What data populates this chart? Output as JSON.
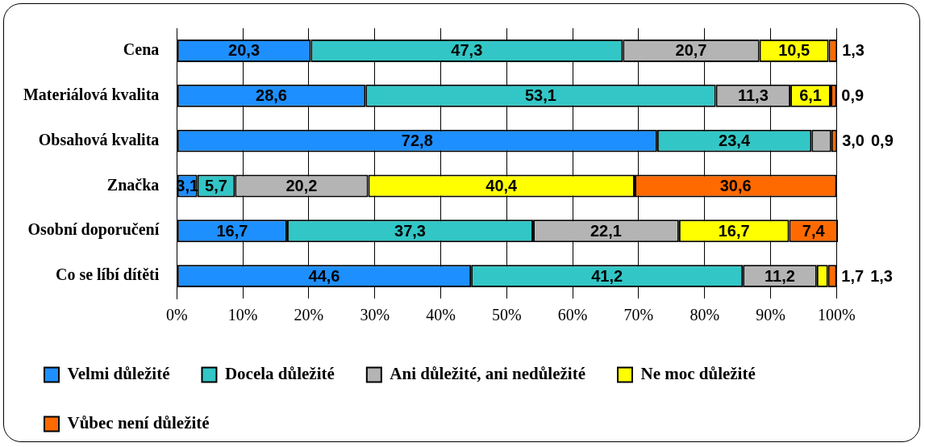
{
  "chart_data": {
    "type": "bar",
    "orientation": "horizontal",
    "stacked": true,
    "categories": [
      "Cena",
      "Materiálová kvalita",
      "Obsahová kvalita",
      "Značka",
      "Osobní doporučení",
      "Co se líbí dítěti"
    ],
    "series": [
      {
        "name": "Velmi důležité",
        "color": "#1e8fff",
        "values": [
          20.3,
          28.6,
          72.8,
          3.1,
          16.7,
          44.6
        ],
        "value_labels": [
          "20,3",
          "28,6",
          "72,8",
          "3,1",
          "16,7",
          "44,6"
        ]
      },
      {
        "name": "Docela důležité",
        "color": "#33c6c6",
        "values": [
          47.3,
          53.1,
          23.4,
          5.7,
          37.3,
          41.2
        ],
        "value_labels": [
          "47,3",
          "53,1",
          "23,4",
          "5,7",
          "37,3",
          "41,2"
        ]
      },
      {
        "name": "Ani důležité, ani nedůležité",
        "color": "#b4b4b4",
        "values": [
          20.7,
          11.3,
          3.0,
          20.2,
          22.1,
          11.2
        ],
        "value_labels": [
          "20,7",
          "11,3",
          "3,0",
          "20,2",
          "22,1",
          "11,2"
        ]
      },
      {
        "name": "Ne moc důležité",
        "color": "#ffff00",
        "values": [
          10.5,
          6.1,
          null,
          40.4,
          16.7,
          1.7
        ],
        "value_labels": [
          "10,5",
          "6,1",
          null,
          "40,4",
          "16,7",
          "1,7"
        ]
      },
      {
        "name": "Vůbec není důležité",
        "color": "#ff6a00",
        "values": [
          1.3,
          0.9,
          0.9,
          30.6,
          7.4,
          1.3
        ],
        "value_labels": [
          "1,3",
          "0,9",
          "0,9",
          "30,6",
          "7,4",
          "1,3"
        ]
      }
    ],
    "xlim": [
      0,
      100.2
    ],
    "xticks": [
      {
        "value": 0,
        "label": "0%"
      },
      {
        "value": 10,
        "label": "10%"
      },
      {
        "value": 20,
        "label": "20%"
      },
      {
        "value": 30,
        "label": "30%"
      },
      {
        "value": 40,
        "label": "40%"
      },
      {
        "value": 50,
        "label": "50%"
      },
      {
        "value": 60,
        "label": "60%"
      },
      {
        "value": 70,
        "label": "70%"
      },
      {
        "value": 80,
        "label": "80%"
      },
      {
        "value": 90,
        "label": "90%"
      },
      {
        "value": 100,
        "label": "100%"
      }
    ],
    "grid": "x",
    "legend": "bottom"
  }
}
